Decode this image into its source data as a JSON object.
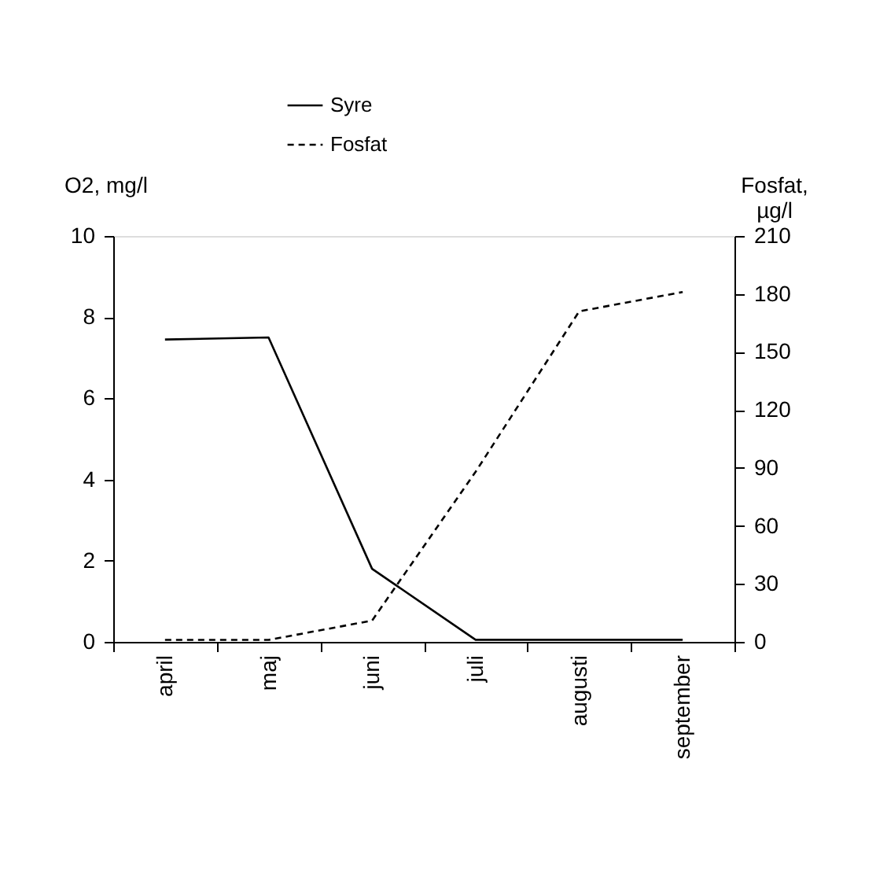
{
  "chart_data": {
    "type": "line",
    "categories": [
      "april",
      "maj",
      "juni",
      "juli",
      "augusti",
      "september"
    ],
    "series": [
      {
        "name": "Syre",
        "color": "#000000",
        "line_style": "solid",
        "values": [
          7.45,
          7.5,
          1.8,
          0.05,
          0.05,
          0.05
        ]
      },
      {
        "name": "Fosfat",
        "color": "#000000",
        "line_style": "dashed",
        "axis": "y2",
        "values": [
          1,
          1,
          11,
          88,
          171,
          181
        ]
      }
    ],
    "ylabel": "O2, mg/l",
    "y2label": "Fosfat, µg/l",
    "ylim": [
      0,
      10
    ],
    "yticks": [
      0,
      2,
      4,
      6,
      8,
      10
    ],
    "y2lim": [
      0,
      210
    ],
    "y2ticks": [
      0,
      30,
      60,
      90,
      120,
      150,
      180,
      210
    ],
    "grid": false,
    "legend": "top",
    "marker": "none"
  }
}
